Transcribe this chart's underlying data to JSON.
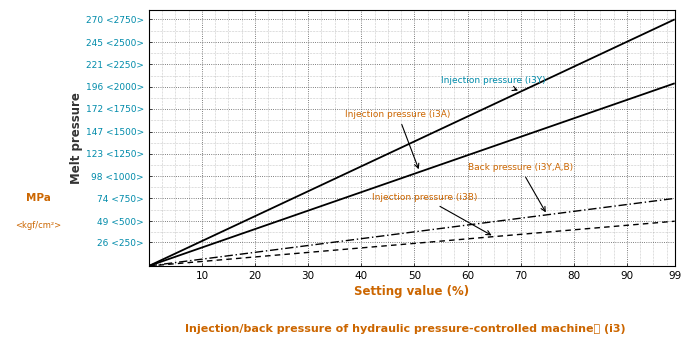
{
  "title": "Injection/back pressure of hydraulic pressure-controlled machine｜ (i3)",
  "xlabel": "Setting value (%)",
  "ylabel": "Melt pressure",
  "ylabel2_mpa": "MPa",
  "ylabel2_kgf": "<kgf/cm²>",
  "yticks_mpa": [
    26,
    49,
    74,
    98,
    123,
    147,
    172,
    196,
    221,
    245,
    270
  ],
  "yticks_kgf": [
    250,
    500,
    750,
    1000,
    1250,
    1500,
    1750,
    2000,
    2250,
    2500,
    2750
  ],
  "xticks": [
    10,
    20,
    30,
    40,
    50,
    60,
    70,
    80,
    90,
    99
  ],
  "xmin": 0,
  "xmax": 99,
  "ymin": 0,
  "ymax": 280,
  "lines": {
    "injection_i3Y": {
      "label": "Injection pressure (i3Y)",
      "x": [
        0,
        99
      ],
      "y": [
        0,
        270
      ],
      "color": "#000000",
      "linestyle": "-",
      "linewidth": 1.3,
      "ann_x": 55,
      "ann_y": 200,
      "tip_x": 70,
      "tip_y": 191,
      "label_color": "#008baa"
    },
    "injection_i3A": {
      "label": "Injection pressure (i3A)",
      "x": [
        0,
        99
      ],
      "y": [
        0,
        200
      ],
      "color": "#000000",
      "linestyle": "-",
      "linewidth": 1.3,
      "ann_x": 37,
      "ann_y": 163,
      "tip_x": 51,
      "tip_y": 103,
      "label_color": "#cc6600"
    },
    "back_pressure": {
      "label": "Back pressure (i3Y,A,B)",
      "x": [
        0,
        99
      ],
      "y": [
        0,
        74
      ],
      "color": "#000000",
      "linestyle": [
        6,
        2,
        1,
        2
      ],
      "linewidth": 1.0,
      "ann_x": 60,
      "ann_y": 105,
      "tip_x": 75,
      "tip_y": 56,
      "label_color": "#cc6600"
    },
    "injection_i3B": {
      "label": "Injection pressure (i3B)",
      "x": [
        0,
        99
      ],
      "y": [
        0,
        49
      ],
      "color": "#000000",
      "linestyle": [
        4,
        3
      ],
      "linewidth": 1.0,
      "ann_x": 42,
      "ann_y": 72,
      "tip_x": 65,
      "tip_y": 32,
      "label_color": "#cc6600"
    }
  },
  "background_color": "#ffffff",
  "text_color_cyan": "#008baa",
  "text_color_orange": "#cc6600",
  "title_color": "#cc6600"
}
